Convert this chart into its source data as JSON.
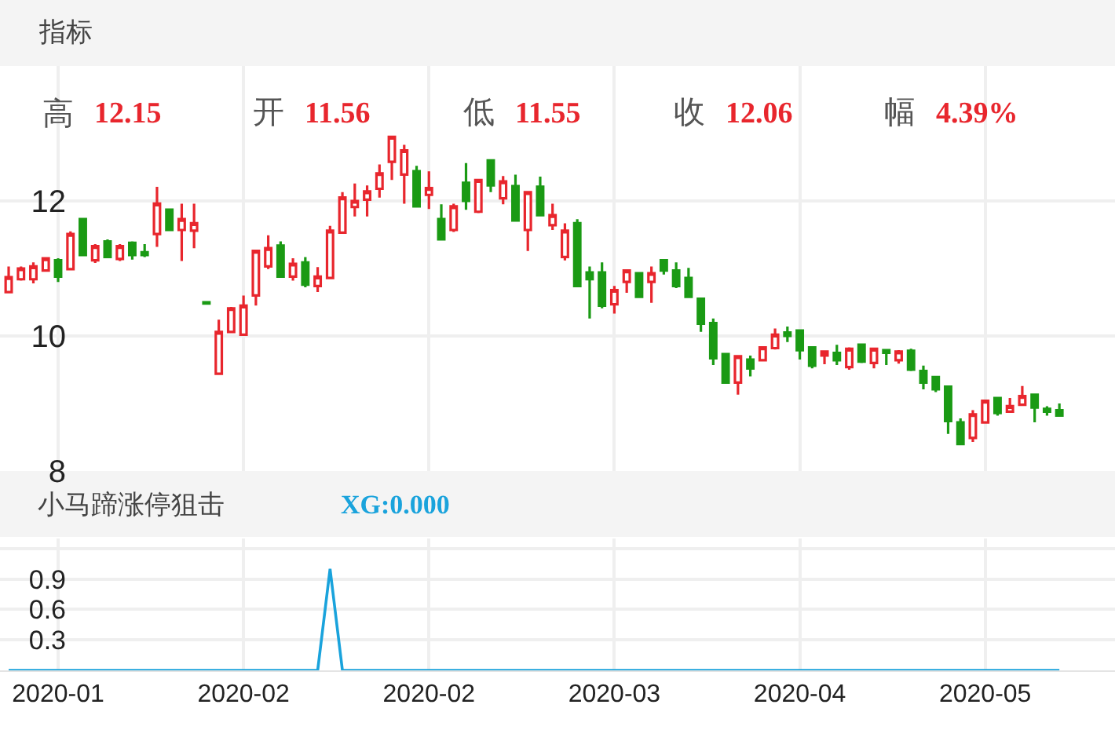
{
  "chart_data": [
    {
      "type": "candlestick",
      "title": "指标",
      "annotations": [
        "高 12.15",
        "开 11.56",
        "低 11.55",
        "收 12.06",
        "幅 4.39%"
      ],
      "categories": [
        null,
        null,
        null,
        null,
        "2020-01",
        null,
        null,
        null,
        null,
        null,
        null,
        null,
        null,
        null,
        null,
        null,
        null,
        null,
        null,
        "2020-02",
        null,
        null,
        null,
        null,
        null,
        null,
        null,
        null,
        null,
        null,
        null,
        null,
        null,
        null,
        "2020-02",
        null,
        null,
        null,
        null,
        null,
        null,
        null,
        null,
        null,
        null,
        null,
        null,
        null,
        null,
        "2020-03",
        null,
        null,
        null,
        null,
        null,
        null,
        null,
        null,
        null,
        null,
        null,
        null,
        null,
        null,
        "2020-04",
        null,
        null,
        null,
        null,
        null,
        null,
        null,
        null,
        null,
        null,
        null,
        null,
        null,
        null,
        "2020-05",
        null,
        null,
        null,
        null,
        null,
        null
      ],
      "ohlc": [
        [
          10.65,
          11.03,
          10.63,
          10.87
        ],
        [
          10.84,
          11.03,
          10.82,
          11.0
        ],
        [
          10.84,
          11.09,
          10.78,
          11.03
        ],
        [
          10.97,
          11.17,
          10.97,
          11.15
        ],
        [
          11.12,
          11.15,
          10.8,
          10.88
        ],
        [
          10.99,
          11.55,
          10.99,
          11.51
        ],
        [
          11.73,
          11.73,
          11.19,
          11.2
        ],
        [
          11.12,
          11.36,
          11.08,
          11.33
        ],
        [
          11.4,
          11.43,
          11.17,
          11.17
        ],
        [
          11.14,
          11.36,
          11.11,
          11.33
        ],
        [
          11.38,
          11.4,
          11.13,
          11.2
        ],
        [
          11.24,
          11.36,
          11.17,
          11.2
        ],
        [
          11.51,
          12.21,
          11.32,
          11.96
        ],
        [
          11.87,
          11.87,
          11.57,
          11.57
        ],
        [
          11.57,
          11.96,
          11.11,
          11.73
        ],
        [
          11.56,
          11.96,
          11.3,
          11.67
        ],
        [
          10.5,
          10.5,
          10.48,
          10.48
        ],
        [
          9.44,
          10.24,
          9.44,
          10.06
        ],
        [
          10.06,
          10.43,
          10.06,
          10.41
        ],
        [
          10.02,
          10.6,
          10.02,
          10.45
        ],
        [
          10.6,
          11.26,
          10.45,
          11.26
        ],
        [
          11.03,
          11.49,
          10.99,
          11.3
        ],
        [
          11.34,
          11.4,
          10.88,
          10.88
        ],
        [
          10.88,
          11.15,
          10.82,
          11.07
        ],
        [
          11.09,
          11.17,
          10.72,
          10.76
        ],
        [
          10.74,
          11.02,
          10.65,
          10.88
        ],
        [
          10.86,
          11.63,
          10.86,
          11.56
        ],
        [
          11.53,
          12.13,
          11.53,
          12.05
        ],
        [
          11.91,
          12.26,
          11.77,
          12.0
        ],
        [
          12.02,
          12.23,
          11.77,
          12.14
        ],
        [
          12.18,
          12.54,
          12.05,
          12.41
        ],
        [
          12.58,
          12.95,
          12.31,
          12.95
        ],
        [
          12.39,
          12.83,
          11.96,
          12.75
        ],
        [
          12.44,
          12.52,
          11.9,
          11.92
        ],
        [
          12.09,
          12.44,
          11.88,
          12.19
        ],
        [
          11.73,
          11.95,
          11.42,
          11.43
        ],
        [
          11.57,
          11.96,
          11.54,
          11.92
        ],
        [
          12.27,
          12.56,
          11.87,
          12.0
        ],
        [
          11.84,
          12.31,
          11.82,
          12.31
        ],
        [
          12.6,
          12.6,
          12.13,
          12.23
        ],
        [
          12.04,
          12.37,
          11.95,
          12.29
        ],
        [
          12.22,
          12.39,
          11.71,
          11.71
        ],
        [
          11.57,
          12.13,
          11.26,
          12.13
        ],
        [
          12.21,
          12.36,
          11.77,
          11.79
        ],
        [
          11.64,
          11.96,
          11.57,
          11.79
        ],
        [
          11.17,
          11.67,
          11.12,
          11.56
        ],
        [
          11.67,
          11.73,
          10.74,
          10.74
        ],
        [
          10.94,
          11.03,
          10.26,
          10.84
        ],
        [
          10.94,
          11.09,
          10.41,
          10.45
        ],
        [
          10.47,
          10.74,
          10.33,
          10.68
        ],
        [
          10.8,
          10.97,
          10.64,
          10.97
        ],
        [
          10.93,
          10.93,
          10.57,
          10.58
        ],
        [
          10.8,
          11.03,
          10.49,
          10.93
        ],
        [
          11.12,
          11.12,
          10.91,
          10.97
        ],
        [
          10.97,
          11.09,
          10.71,
          10.74
        ],
        [
          10.86,
          11.01,
          10.57,
          10.58
        ],
        [
          10.55,
          10.55,
          10.06,
          10.18
        ],
        [
          10.19,
          10.26,
          9.57,
          9.67
        ],
        [
          9.73,
          9.73,
          9.29,
          9.31
        ],
        [
          9.31,
          9.7,
          9.13,
          9.7
        ],
        [
          9.65,
          9.71,
          9.4,
          9.52
        ],
        [
          9.64,
          9.83,
          9.64,
          9.83
        ],
        [
          9.82,
          10.11,
          9.8,
          10.02
        ],
        [
          10.05,
          10.14,
          9.91,
          10.0
        ],
        [
          10.08,
          10.08,
          9.65,
          9.79
        ],
        [
          9.83,
          9.83,
          9.52,
          9.56
        ],
        [
          9.71,
          9.77,
          9.58,
          9.77
        ],
        [
          9.75,
          9.87,
          9.57,
          9.64
        ],
        [
          9.54,
          9.83,
          9.5,
          9.81
        ],
        [
          9.87,
          9.88,
          9.6,
          9.62
        ],
        [
          9.6,
          9.81,
          9.52,
          9.81
        ],
        [
          9.79,
          9.79,
          9.57,
          9.75
        ],
        [
          9.64,
          9.79,
          9.59,
          9.77
        ],
        [
          9.78,
          9.81,
          9.48,
          9.5
        ],
        [
          9.48,
          9.56,
          9.21,
          9.31
        ],
        [
          9.39,
          9.4,
          9.17,
          9.21
        ],
        [
          9.25,
          9.25,
          8.55,
          8.74
        ],
        [
          8.72,
          8.78,
          8.4,
          8.4
        ],
        [
          8.49,
          8.9,
          8.43,
          8.84
        ],
        [
          8.72,
          9.05,
          8.71,
          9.04
        ],
        [
          9.08,
          9.09,
          8.82,
          8.86
        ],
        [
          8.88,
          9.08,
          8.88,
          8.96
        ],
        [
          8.98,
          9.26,
          8.98,
          9.11
        ],
        [
          9.13,
          9.13,
          8.72,
          8.94
        ],
        [
          8.92,
          8.96,
          8.82,
          8.88
        ],
        [
          8.9,
          9.0,
          8.82,
          8.82
        ]
      ],
      "colors": [
        "#e8262d",
        "#e8262d",
        "#e8262d",
        "#e8262d",
        "#1a9a14",
        "#e8262d",
        "#1a9a14",
        "#e8262d",
        "#1a9a14",
        "#e8262d",
        "#1a9a14",
        "#1a9a14",
        "#e8262d",
        "#1a9a14",
        "#e8262d",
        "#e8262d",
        "#1a9a14",
        "#e8262d",
        "#e8262d",
        "#e8262d",
        "#e8262d",
        "#e8262d",
        "#1a9a14",
        "#e8262d",
        "#1a9a14",
        "#e8262d",
        "#e8262d",
        "#e8262d",
        "#e8262d",
        "#e8262d",
        "#e8262d",
        "#e8262d",
        "#e8262d",
        "#1a9a14",
        "#e8262d",
        "#1a9a14",
        "#e8262d",
        "#1a9a14",
        "#e8262d",
        "#1a9a14",
        "#e8262d",
        "#1a9a14",
        "#e8262d",
        "#1a9a14",
        "#e8262d",
        "#e8262d",
        "#1a9a14",
        "#1a9a14",
        "#1a9a14",
        "#e8262d",
        "#e8262d",
        "#1a9a14",
        "#e8262d",
        "#1a9a14",
        "#1a9a14",
        "#1a9a14",
        "#1a9a14",
        "#1a9a14",
        "#1a9a14",
        "#e8262d",
        "#1a9a14",
        "#e8262d",
        "#e8262d",
        "#1a9a14",
        "#1a9a14",
        "#1a9a14",
        "#e8262d",
        "#1a9a14",
        "#e8262d",
        "#1a9a14",
        "#e8262d",
        "#1a9a14",
        "#e8262d",
        "#1a9a14",
        "#1a9a14",
        "#1a9a14",
        "#1a9a14",
        "#1a9a14",
        "#e8262d",
        "#e8262d",
        "#1a9a14",
        "#e8262d",
        "#e8262d",
        "#1a9a14",
        "#1a9a14",
        "#1a9a14"
      ],
      "ylim": [
        8,
        14
      ],
      "yticks": [
        8,
        10,
        12
      ],
      "grid": true,
      "tick_labels": "y"
    },
    {
      "type": "line",
      "title": "小马蹄涨停狙击",
      "categories": [
        null,
        null,
        null,
        null,
        "2020-01",
        null,
        null,
        null,
        null,
        null,
        null,
        null,
        null,
        null,
        null,
        null,
        null,
        null,
        null,
        "2020-02",
        null,
        null,
        null,
        null,
        null,
        null,
        null,
        null,
        null,
        null,
        null,
        null,
        null,
        null,
        "2020-02",
        null,
        null,
        null,
        null,
        null,
        null,
        null,
        null,
        null,
        null,
        null,
        null,
        null,
        null,
        "2020-03",
        null,
        null,
        null,
        null,
        null,
        null,
        null,
        null,
        null,
        null,
        null,
        null,
        null,
        null,
        "2020-04",
        null,
        null,
        null,
        null,
        null,
        null,
        null,
        null,
        null,
        null,
        null,
        null,
        null,
        null,
        "2020-05",
        null,
        null,
        null,
        null,
        null,
        null
      ],
      "series": [
        {
          "name": "XG:0.000",
          "color": "#1aa3dc",
          "values": [
            0,
            0,
            0,
            0,
            0,
            0,
            0,
            0,
            0,
            0,
            0,
            0,
            0,
            0,
            0,
            0,
            0,
            0,
            0,
            0,
            0,
            0,
            0,
            0,
            0,
            0,
            1,
            0,
            0,
            0,
            0,
            0,
            0,
            0,
            0,
            0,
            0,
            0,
            0,
            0,
            0,
            0,
            0,
            0,
            0,
            0,
            0,
            0,
            0,
            0,
            0,
            0,
            0,
            0,
            0,
            0,
            0,
            0,
            0,
            0,
            0,
            0,
            0,
            0,
            0,
            0,
            0,
            0,
            0,
            0,
            0,
            0,
            0,
            0,
            0,
            0,
            0,
            0,
            0,
            0,
            0,
            0,
            0,
            0,
            0,
            0
          ]
        }
      ],
      "ylim": [
        0,
        1.3
      ],
      "yticks": [
        0.3,
        0.6,
        0.9,
        {
          "value": 1.2,
          "label": null
        }
      ],
      "grid": true,
      "marker": "none",
      "line_style": "solid"
    }
  ]
}
